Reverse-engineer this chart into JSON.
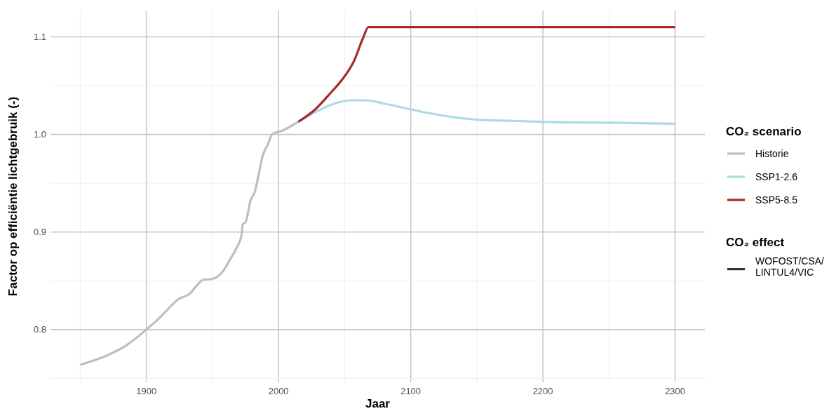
{
  "chart_data": {
    "type": "line",
    "xlabel": "Jaar",
    "ylabel": "Factor op efficiëntie lichtgebruik (-)",
    "legend_title": "CO₂ scenario",
    "legend": "right",
    "grid": true,
    "line_style": "solid",
    "marker": "none",
    "xlim": [
      1827.5,
      2322.5
    ],
    "ylim": [
      0.746,
      1.127
    ],
    "xticks": [
      {
        "value": 1850,
        "label": null
      },
      1900,
      {
        "value": 1950,
        "label": null
      },
      2000,
      {
        "value": 2050,
        "label": null
      },
      2100,
      {
        "value": 2150,
        "label": null
      },
      2200,
      {
        "value": 2250,
        "label": null
      },
      2300
    ],
    "yticks": [
      {
        "value": 0.75,
        "label": null
      },
      0.8,
      {
        "value": 0.85,
        "label": null
      },
      0.9,
      {
        "value": 0.95,
        "label": null
      },
      {
        "value": 1,
        "label": "1.0"
      },
      {
        "value": 1.05,
        "label": null
      },
      1.1
    ],
    "annotations": [
      "CO₂ effect",
      "WOFOST/CSA/\nLINTUL4/VIC"
    ],
    "series": [
      {
        "name": "Historie",
        "color": "#bebebe",
        "x": [
          1850,
          1871,
          1885,
          1900,
          1910,
          1917,
          1924,
          1933,
          1938,
          1943,
          1950,
          1958,
          1963,
          1968,
          1972,
          1973,
          1975,
          1979,
          1982,
          1985,
          1988,
          1992,
          1995,
          2003,
          2015
        ],
        "values": [
          0.764,
          0.774,
          0.784,
          0.8,
          0.812,
          0.822,
          0.831,
          0.837,
          0.845,
          0.851,
          0.852,
          0.86,
          0.871,
          0.883,
          0.897,
          0.908,
          0.91,
          0.933,
          0.941,
          0.959,
          0.978,
          0.99,
          1.0,
          1.004,
          1.013
        ]
      },
      {
        "name": "SSP1-2.6",
        "color": "#add8e6",
        "x": [
          2015,
          2028,
          2041,
          2055,
          2066,
          2082,
          2099,
          2126,
          2152,
          2175,
          2200,
          2250,
          2300
        ],
        "values": [
          1.013,
          1.023,
          1.031,
          1.035,
          1.035,
          1.031,
          1.026,
          1.019,
          1.015,
          1.014,
          1.013,
          1.012,
          1.011
        ]
      },
      {
        "name": "SSP5-8.5",
        "color": "#a52a2a",
        "x": [
          2015,
          2028,
          2039,
          2048,
          2057,
          2064,
          2068,
          2300
        ],
        "values": [
          1.013,
          1.026,
          1.042,
          1.056,
          1.075,
          1.099,
          1.11,
          1.11
        ]
      }
    ]
  }
}
